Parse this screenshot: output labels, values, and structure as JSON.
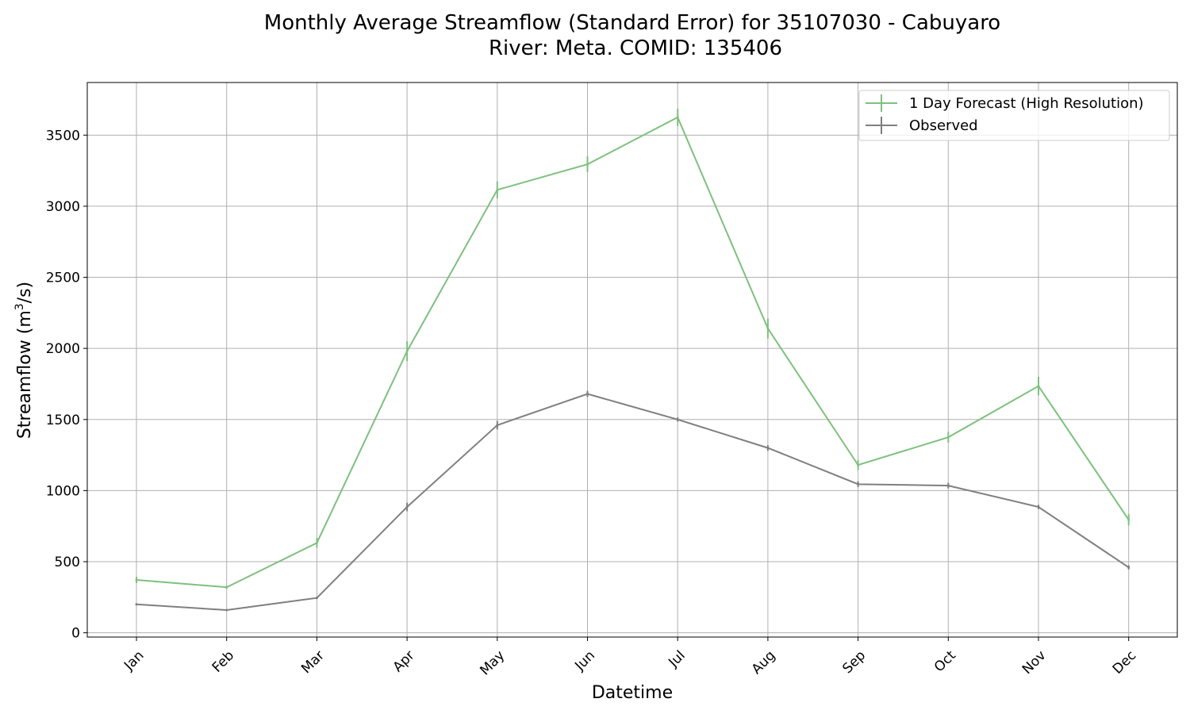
{
  "chart_data": {
    "type": "line",
    "title_line1": "Monthly Average Streamflow (Standard Error) for 35107030 - Cabuyaro",
    "title_line2": "River: Meta. COMID: 135406",
    "xlabel": "Datetime",
    "ylabel": "Streamflow (m",
    "ylabel_sup": "3",
    "ylabel_end": "/s)",
    "categories": [
      "Jan",
      "Feb",
      "Mar",
      "Apr",
      "May",
      "Jun",
      "Jul",
      "Aug",
      "Sep",
      "Oct",
      "Nov",
      "Dec"
    ],
    "yticks": [
      "0",
      "500",
      "1000",
      "1500",
      "2000",
      "2500",
      "3000",
      "3500"
    ],
    "ylim": [
      -30,
      3870
    ],
    "grid": true,
    "legend_position": "top-right",
    "series": [
      {
        "name": "1 Day Forecast (High Resolution)",
        "color": "#7ec07e",
        "values": [
          372,
          320,
          632,
          1980,
          3115,
          3295,
          3625,
          2140,
          1180,
          1375,
          1735,
          795
        ],
        "errors": [
          22,
          10,
          35,
          70,
          60,
          55,
          60,
          70,
          35,
          38,
          65,
          40
        ]
      },
      {
        "name": "Observed",
        "color": "#7f7f7f",
        "values": [
          200,
          160,
          245,
          885,
          1460,
          1680,
          1500,
          1300,
          1045,
          1035,
          885,
          460
        ],
        "errors": [
          4,
          4,
          8,
          30,
          30,
          22,
          15,
          20,
          20,
          20,
          15,
          15
        ]
      }
    ]
  }
}
